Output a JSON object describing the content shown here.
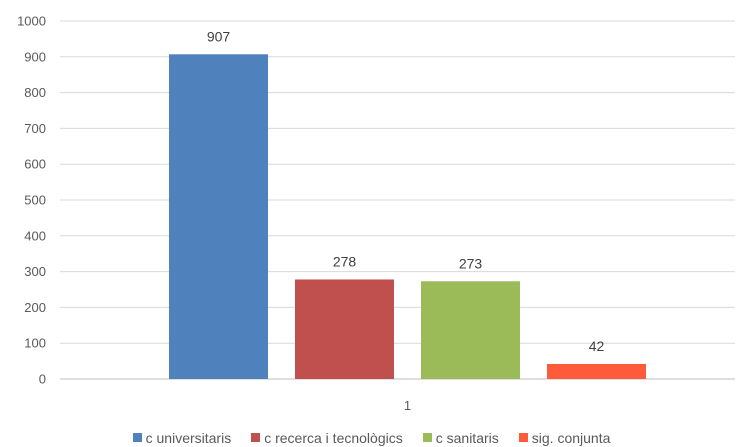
{
  "chart_data": {
    "type": "bar",
    "categories": [
      "1"
    ],
    "series": [
      {
        "name": "c universitaris",
        "values": [
          907
        ],
        "color": "#4f81bd"
      },
      {
        "name": "c recerca i tecnològics",
        "values": [
          278
        ],
        "color": "#c0504d"
      },
      {
        "name": "c sanitaris",
        "values": [
          273
        ],
        "color": "#9bbb59"
      },
      {
        "name": "sig. conjunta",
        "values": [
          42
        ],
        "color": "#ff5b3a"
      }
    ],
    "title": "",
    "xlabel": "",
    "ylabel": "",
    "ylim": [
      0,
      1000
    ],
    "yticks": [
      0,
      100,
      200,
      300,
      400,
      500,
      600,
      700,
      800,
      900,
      1000
    ],
    "grid": true,
    "legend_position": "bottom"
  }
}
